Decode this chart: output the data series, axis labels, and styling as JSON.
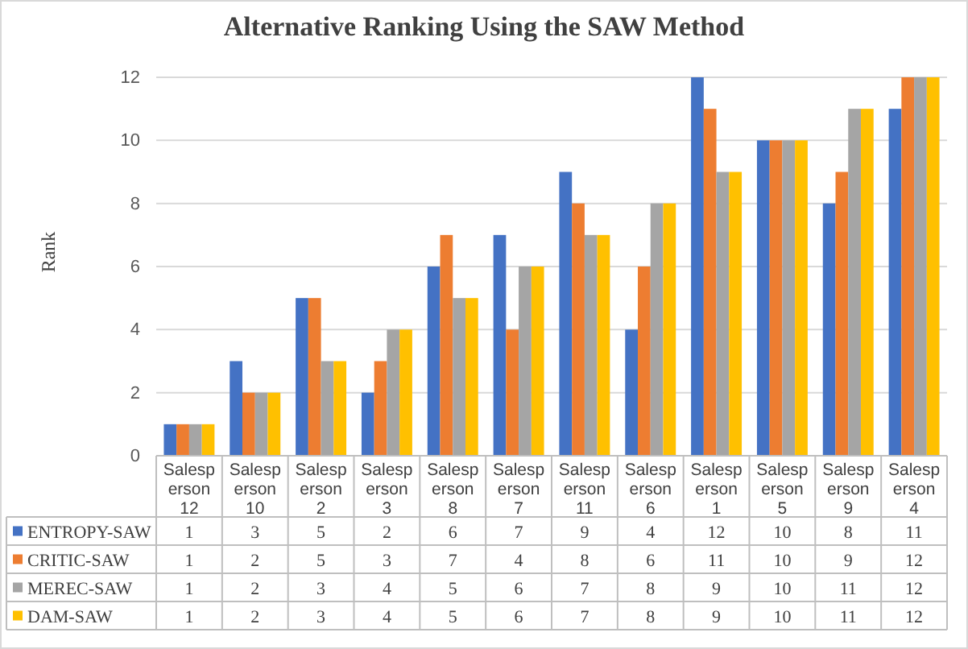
{
  "chart_data": {
    "type": "bar",
    "title": "Alternative Ranking Using the SAW Method",
    "ylabel": "Rank",
    "categories": [
      "Salesperson 12",
      "Salesperson 10",
      "Salesperson 2",
      "Salesperson 3",
      "Salesperson 8",
      "Salesperson 7",
      "Salesperson 11",
      "Salesperson 6",
      "Salesperson 1",
      "Salesperson 5",
      "Salesperson 9",
      "Salesperson 4"
    ],
    "series": [
      {
        "name": "ENTROPY-SAW",
        "color": "#4472c4",
        "values": [
          1,
          3,
          5,
          2,
          6,
          7,
          9,
          4,
          12,
          10,
          8,
          11
        ]
      },
      {
        "name": "CRITIC-SAW",
        "color": "#ed7d31",
        "values": [
          1,
          2,
          5,
          3,
          7,
          4,
          8,
          6,
          11,
          10,
          9,
          12
        ]
      },
      {
        "name": "MEREC-SAW",
        "color": "#a5a5a5",
        "values": [
          1,
          2,
          3,
          4,
          5,
          6,
          7,
          8,
          9,
          10,
          11,
          12
        ]
      },
      {
        "name": "DAM-SAW",
        "color": "#ffc000",
        "values": [
          1,
          2,
          3,
          4,
          5,
          6,
          7,
          8,
          9,
          10,
          11,
          12
        ]
      }
    ],
    "ylim": [
      0,
      12
    ],
    "yticks": [
      0,
      2,
      4,
      6,
      8,
      10,
      12
    ],
    "grid": "y",
    "legend": "bottom",
    "data_labels": true
  }
}
